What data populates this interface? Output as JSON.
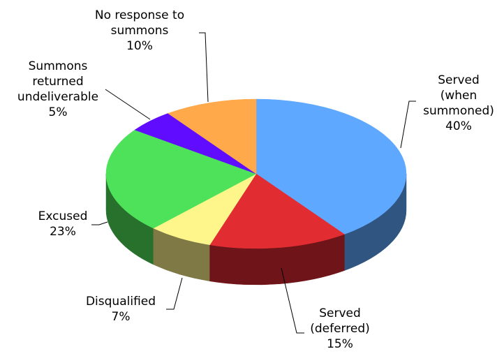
{
  "chart_data": {
    "type": "pie",
    "style": "3d",
    "title": "",
    "slices": [
      {
        "label_lines": [
          "Served",
          "(when",
          "summoned)"
        ],
        "percent_label": "40%",
        "value": 40,
        "color": "#5fa8ff",
        "side_color": "#2f5580"
      },
      {
        "label_lines": [
          "Served",
          "(deferred)"
        ],
        "percent_label": "15%",
        "value": 15,
        "color": "#e12c32",
        "side_color": "#6f1519"
      },
      {
        "label_lines": [
          "Disqualified"
        ],
        "percent_label": "7%",
        "value": 7,
        "color": "#fef58b",
        "side_color": "#7f7a45"
      },
      {
        "label_lines": [
          "Excused"
        ],
        "percent_label": "23%",
        "value": 23,
        "color": "#4ee25a",
        "side_color": "#27712d"
      },
      {
        "label_lines": [
          "Summons",
          "returned",
          "undeliverable"
        ],
        "percent_label": "5%",
        "value": 5,
        "color": "#5f0cff",
        "side_color": "#2f067f"
      },
      {
        "label_lines": [
          "No response to",
          "summons"
        ],
        "percent_label": "10%",
        "value": 10,
        "color": "#ffa94a",
        "side_color": "#7f5425"
      }
    ]
  }
}
